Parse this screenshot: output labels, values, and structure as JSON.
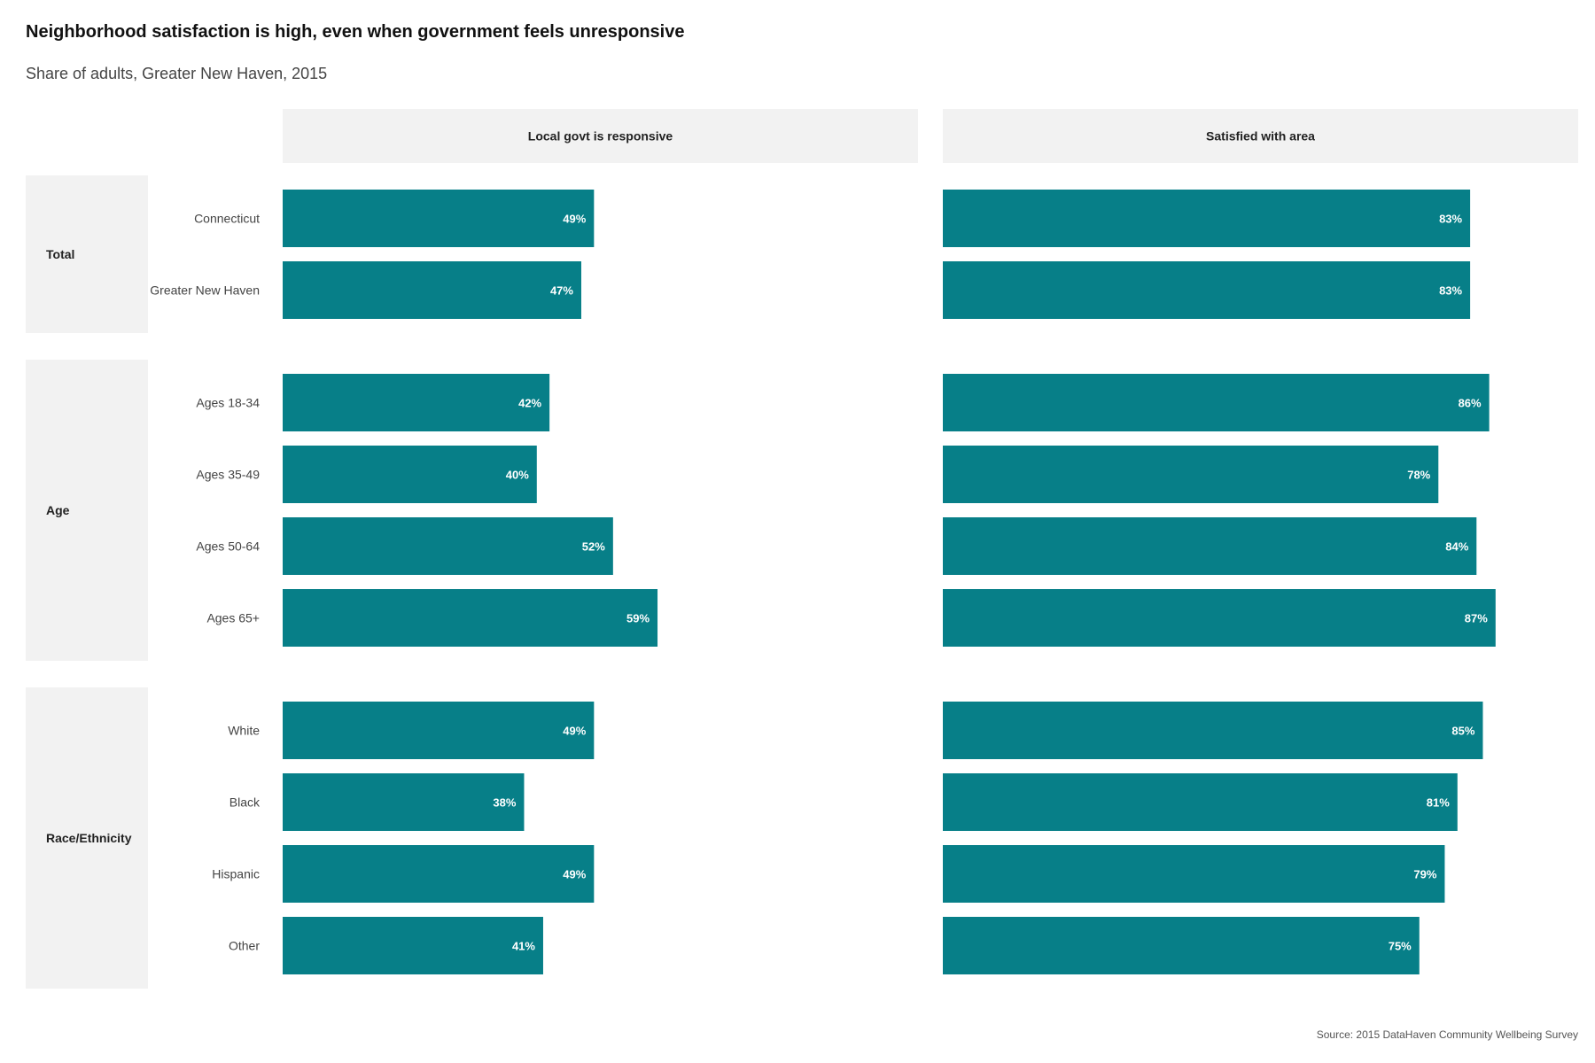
{
  "chart_data": {
    "type": "bar",
    "orientation": "horizontal",
    "title": "Neighborhood satisfaction is high, even when government feels unresponsive",
    "subtitle": "Share of adults, Greater New Haven, 2015",
    "caption": "Source: 2015 DataHaven Community Wellbeing Survey",
    "bar_color": "#077f88",
    "panels": [
      "Local govt is responsive",
      "Satisfied with area"
    ],
    "xlim": [
      0,
      1
    ],
    "groups": [
      {
        "name": "Total",
        "categories": [
          "Connecticut",
          "Greater New Haven"
        ],
        "values": [
          [
            0.49,
            0.83
          ],
          [
            0.47,
            0.83
          ]
        ],
        "labels": [
          [
            "49%",
            "83%"
          ],
          [
            "47%",
            "83%"
          ]
        ]
      },
      {
        "name": "Age",
        "categories": [
          "Ages 18-34",
          "Ages 35-49",
          "Ages 50-64",
          "Ages 65+"
        ],
        "values": [
          [
            0.42,
            0.86
          ],
          [
            0.4,
            0.78
          ],
          [
            0.52,
            0.84
          ],
          [
            0.59,
            0.87
          ]
        ],
        "labels": [
          [
            "42%",
            "86%"
          ],
          [
            "40%",
            "78%"
          ],
          [
            "52%",
            "84%"
          ],
          [
            "59%",
            "87%"
          ]
        ]
      },
      {
        "name": "Race/Ethnicity",
        "categories": [
          "White",
          "Black",
          "Hispanic",
          "Other"
        ],
        "values": [
          [
            0.49,
            0.85
          ],
          [
            0.38,
            0.81
          ],
          [
            0.49,
            0.79
          ],
          [
            0.41,
            0.75
          ]
        ],
        "labels": [
          [
            "49%",
            "85%"
          ],
          [
            "38%",
            "81%"
          ],
          [
            "49%",
            "79%"
          ],
          [
            "41%",
            "75%"
          ]
        ]
      }
    ]
  }
}
